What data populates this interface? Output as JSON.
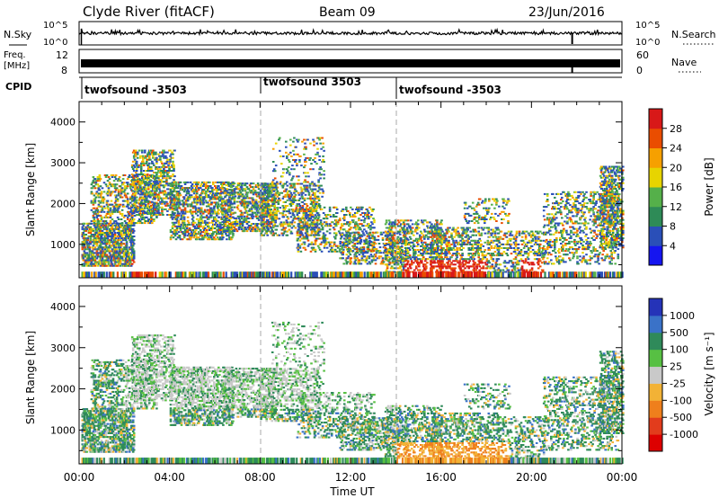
{
  "header": {
    "station": "Clyde River (fitACF)",
    "beam": "Beam 09",
    "date": "23/Jun/2016"
  },
  "nsky_panel": {
    "left_label": "N.Sky",
    "left_ticks": [
      "10^5",
      "10^0"
    ],
    "right_label": "N.Search",
    "right_ticks": [
      "10^5",
      "10^0"
    ]
  },
  "freq_panel": {
    "left_label_1": "Freq.",
    "left_label_2": "[MHz]",
    "left_ticks": [
      "12",
      "8"
    ],
    "right_label": "Nave",
    "right_ticks": [
      "60",
      "0"
    ]
  },
  "cpid": {
    "label": "CPID",
    "segments": [
      "twofsound -3503",
      "twofsound 3503",
      "twofsound -3503"
    ]
  },
  "chart_data": [
    {
      "type": "heatmap",
      "name": "power",
      "ylabel": "Slant Range [km]",
      "ylim": [
        180,
        4500
      ],
      "yticks": [
        "1000",
        "2000",
        "3000",
        "4000"
      ],
      "xlim": [
        0,
        24
      ],
      "xticks": [
        "00:00",
        "04:00",
        "08:00",
        "12:00",
        "16:00",
        "20:00",
        "00:00"
      ],
      "colorbar": {
        "label": "Power [dB]",
        "ticks": [
          "4",
          "8",
          "12",
          "16",
          "20",
          "24",
          "28"
        ],
        "colors": [
          "#1515f0",
          "#2a4fb8",
          "#2e8b57",
          "#55b04a",
          "#e7d400",
          "#f6a000",
          "#ea4d00",
          "#d81818"
        ]
      }
    },
    {
      "type": "heatmap",
      "name": "velocity",
      "ylabel": "Slant Range [km]",
      "ylim": [
        180,
        4500
      ],
      "yticks": [
        "1000",
        "2000",
        "3000",
        "4000"
      ],
      "xlim": [
        0,
        24
      ],
      "xticks": [
        "00:00",
        "04:00",
        "08:00",
        "12:00",
        "16:00",
        "20:00",
        "00:00"
      ],
      "xlabel": "Time UT",
      "colorbar": {
        "label": "Velocity [m s⁻¹]",
        "ticks": [
          "1000",
          "500",
          "100",
          "25",
          "-25",
          "-100",
          "-500",
          "-1000"
        ],
        "colors": [
          "#2533b8",
          "#3a72c8",
          "#2f8a5a",
          "#57c043",
          "#c9c9c9",
          "#f2b236",
          "#ef7f1c",
          "#e23c1c",
          "#dd0000"
        ]
      }
    }
  ]
}
